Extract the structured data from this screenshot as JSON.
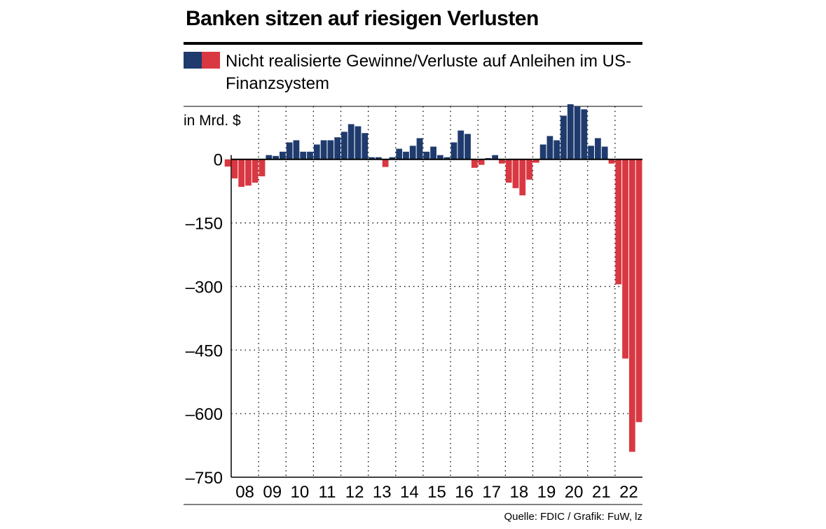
{
  "title": "Banken sitzen auf riesigen Verlusten",
  "legend": {
    "label": "Nicht realisierte Gewinne/Verluste auf Anleihen im US-Finanzsystem"
  },
  "source": "Quelle: FDIC / Grafik: FuW, lz",
  "colors": {
    "positive": "#1f3b6e",
    "negative": "#d93842"
  },
  "chart_data": {
    "type": "bar",
    "unit_label": "in Mrd. $",
    "ylim": [
      -750,
      125
    ],
    "yticks": [
      0,
      -150,
      -300,
      -450,
      -600,
      -750
    ],
    "ytick_labels": [
      "0",
      "–150",
      "–300",
      "–450",
      "–600",
      "–750"
    ],
    "year_labels": [
      "08",
      "09",
      "10",
      "11",
      "12",
      "13",
      "14",
      "15",
      "16",
      "17",
      "18",
      "19",
      "20",
      "21",
      "22"
    ],
    "grid": "dotted vertical at year boundaries, dotted horizontal at ticks",
    "series": [
      {
        "values": [
          -17,
          -45,
          -65,
          -62,
          -55,
          -40,
          10,
          8,
          18,
          40,
          45,
          18,
          18,
          35,
          45,
          45,
          52,
          65,
          83,
          78,
          62,
          5,
          5,
          -18,
          5,
          25,
          18,
          32,
          50,
          18,
          30,
          10,
          5,
          40,
          68,
          60,
          -20,
          -13,
          3,
          10,
          -10,
          -55,
          -68,
          -85,
          -48,
          -8,
          35,
          55,
          45,
          103,
          130,
          125,
          118,
          32,
          50,
          30,
          -10,
          -295,
          -470,
          -690,
          -620
        ]
      }
    ]
  }
}
